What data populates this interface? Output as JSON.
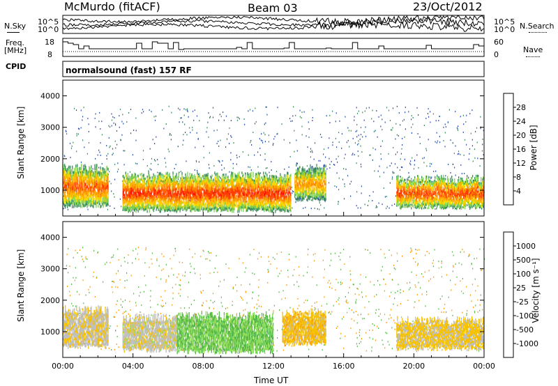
{
  "header": {
    "station": "McMurdo (fitACF)",
    "beam": "Beam 03",
    "date": "23/Oct/2012"
  },
  "panels": {
    "nsky_label": "N.Sky",
    "nsearch_label": "N.Search",
    "freq_label_1": "Freq.",
    "freq_label_2": "[MHz]",
    "nave_label": "Nave",
    "cpid_label": "CPID",
    "cpid_value": "normalsound (fast) 157 RF",
    "noise_ticks_left": [
      "10^5",
      "10^0"
    ],
    "noise_ticks_right": [
      "10^5",
      "10^0"
    ],
    "freq_ticks": [
      "18",
      "8"
    ],
    "nave_ticks": [
      "60",
      "0"
    ]
  },
  "colorbars": {
    "power_title": "Power [dB]",
    "power_ticks": [
      "28",
      "24",
      "20",
      "16",
      "12",
      "8",
      "4"
    ],
    "power_colors": [
      "#ff0000",
      "#ff3b00",
      "#ff7f00",
      "#ffb000",
      "#f5d800",
      "#7ccf4d",
      "#3a8c5a",
      "#2a4fb0",
      "#0000ff"
    ],
    "velocity_title": "Velocity [m s⁻¹]",
    "velocity_ticks": [
      "1000",
      "500",
      "100",
      "25",
      "-25",
      "-100",
      "-500",
      "-1000"
    ],
    "velocity_colors": [
      "#1f2fa8",
      "#2a57b8",
      "#3a8c5a",
      "#55b84a",
      "#8fdc5a",
      "#bebebe",
      "#f5c000",
      "#ff9a00",
      "#ff6a00",
      "#ff0000"
    ]
  },
  "chart_data": [
    {
      "type": "heatmap",
      "title": "Power [dB]",
      "xlabel": "Time UT",
      "ylabel": "Slant Range [km]",
      "xlim": [
        "00:00",
        "24:00"
      ],
      "ylim": [
        180,
        4500
      ],
      "x_ticks": [
        "00:00",
        "04:00",
        "08:00",
        "12:00",
        "16:00",
        "20:00",
        "00:00"
      ],
      "y_ticks": [
        "1000",
        "2000",
        "3000",
        "4000"
      ],
      "colorbar_range": [
        0,
        30
      ],
      "bands": [
        {
          "t0": 0.0,
          "t1": 2.6,
          "r0": 500,
          "r1": 1700,
          "value": 26
        },
        {
          "t0": 3.4,
          "t1": 13.0,
          "r0": 350,
          "r1": 1450,
          "value": 28
        },
        {
          "t0": 13.2,
          "t1": 15.0,
          "r0": 700,
          "r1": 1700,
          "value": 22
        },
        {
          "t0": 19.0,
          "t1": 24.0,
          "r0": 450,
          "r1": 1350,
          "value": 27
        }
      ]
    },
    {
      "type": "heatmap",
      "title": "Velocity [m s⁻¹]",
      "xlabel": "Time UT",
      "ylabel": "Slant Range [km]",
      "xlim": [
        "00:00",
        "24:00"
      ],
      "ylim": [
        180,
        4500
      ],
      "x_ticks": [
        "00:00",
        "04:00",
        "08:00",
        "12:00",
        "16:00",
        "20:00",
        "00:00"
      ],
      "y_ticks": [
        "1000",
        "2000",
        "3000",
        "4000"
      ],
      "colorbar_range": [
        -1000,
        1000
      ],
      "bands": [
        {
          "t0": 0.0,
          "t1": 2.6,
          "r0": 500,
          "r1": 1700,
          "value": -150
        },
        {
          "t0": 3.4,
          "t1": 6.5,
          "r0": 400,
          "r1": 1450,
          "value": -120
        },
        {
          "t0": 6.5,
          "t1": 12.0,
          "r0": 350,
          "r1": 1500,
          "value": 200
        },
        {
          "t0": 12.5,
          "t1": 15.0,
          "r0": 600,
          "r1": 1600,
          "value": -300
        },
        {
          "t0": 19.0,
          "t1": 24.0,
          "r0": 450,
          "r1": 1350,
          "value": -250
        }
      ]
    }
  ]
}
